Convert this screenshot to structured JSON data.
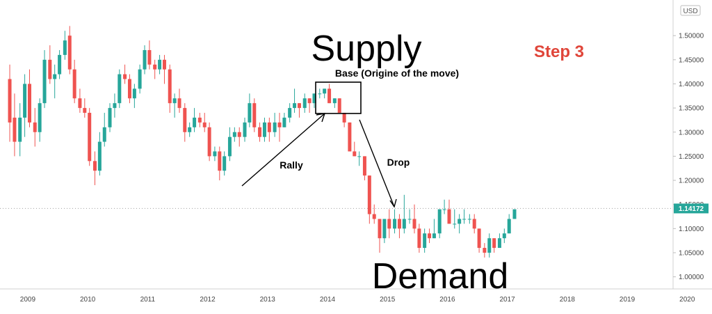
{
  "chart_data": {
    "type": "candlestick",
    "currency_label": "USD",
    "x_ticks": [
      "2009",
      "2010",
      "2011",
      "2012",
      "2013",
      "2014",
      "2015",
      "2016",
      "2017",
      "2018",
      "2019",
      "2020"
    ],
    "y_ticks": [
      "1.50000",
      "1.45000",
      "1.40000",
      "1.35000",
      "1.30000",
      "1.25000",
      "1.20000",
      "1.15000",
      "1.10000",
      "1.05000",
      "1.00000"
    ],
    "ylim": [
      0.985,
      1.545
    ],
    "xlim": [
      2008.93,
      2020.03
    ],
    "current_price": {
      "value": 1.14172,
      "label": "1.14172"
    },
    "colors": {
      "up": "#26a69a",
      "down": "#ef5350",
      "annotation_red": "#e0463a",
      "price_line": "#9e9e9e"
    },
    "candles": [
      [
        2009.0,
        1.41,
        1.44,
        1.28,
        1.32
      ],
      [
        2009.08,
        1.33,
        1.38,
        1.25,
        1.28
      ],
      [
        2009.17,
        1.28,
        1.36,
        1.25,
        1.33
      ],
      [
        2009.25,
        1.33,
        1.42,
        1.29,
        1.4
      ],
      [
        2009.33,
        1.4,
        1.43,
        1.31,
        1.32
      ],
      [
        2009.42,
        1.32,
        1.35,
        1.27,
        1.3
      ],
      [
        2009.5,
        1.3,
        1.37,
        1.28,
        1.36
      ],
      [
        2009.58,
        1.36,
        1.47,
        1.35,
        1.45
      ],
      [
        2009.67,
        1.45,
        1.48,
        1.4,
        1.41
      ],
      [
        2009.75,
        1.41,
        1.44,
        1.37,
        1.42
      ],
      [
        2009.83,
        1.42,
        1.47,
        1.41,
        1.46
      ],
      [
        2009.92,
        1.46,
        1.51,
        1.45,
        1.49
      ],
      [
        2010.0,
        1.5,
        1.52,
        1.42,
        1.43
      ],
      [
        2010.08,
        1.43,
        1.45,
        1.36,
        1.37
      ],
      [
        2010.17,
        1.37,
        1.39,
        1.34,
        1.35
      ],
      [
        2010.25,
        1.35,
        1.37,
        1.33,
        1.34
      ],
      [
        2010.33,
        1.34,
        1.35,
        1.23,
        1.24
      ],
      [
        2010.42,
        1.24,
        1.26,
        1.19,
        1.22
      ],
      [
        2010.5,
        1.22,
        1.3,
        1.21,
        1.28
      ],
      [
        2010.58,
        1.28,
        1.34,
        1.27,
        1.31
      ],
      [
        2010.67,
        1.31,
        1.36,
        1.3,
        1.35
      ],
      [
        2010.75,
        1.35,
        1.38,
        1.33,
        1.36
      ],
      [
        2010.83,
        1.36,
        1.43,
        1.35,
        1.42
      ],
      [
        2010.92,
        1.42,
        1.44,
        1.4,
        1.41
      ],
      [
        2011.0,
        1.41,
        1.42,
        1.36,
        1.37
      ],
      [
        2011.08,
        1.37,
        1.4,
        1.35,
        1.39
      ],
      [
        2011.17,
        1.39,
        1.44,
        1.38,
        1.43
      ],
      [
        2011.25,
        1.43,
        1.48,
        1.42,
        1.47
      ],
      [
        2011.33,
        1.47,
        1.49,
        1.43,
        1.44
      ],
      [
        2011.42,
        1.44,
        1.45,
        1.41,
        1.43
      ],
      [
        2011.5,
        1.43,
        1.46,
        1.42,
        1.45
      ],
      [
        2011.58,
        1.45,
        1.46,
        1.4,
        1.43
      ],
      [
        2011.67,
        1.43,
        1.44,
        1.34,
        1.36
      ],
      [
        2011.75,
        1.36,
        1.38,
        1.33,
        1.37
      ],
      [
        2011.83,
        1.37,
        1.39,
        1.34,
        1.35
      ],
      [
        2011.92,
        1.35,
        1.36,
        1.28,
        1.3
      ],
      [
        2012.0,
        1.3,
        1.32,
        1.29,
        1.31
      ],
      [
        2012.08,
        1.31,
        1.35,
        1.3,
        1.33
      ],
      [
        2012.17,
        1.33,
        1.34,
        1.31,
        1.32
      ],
      [
        2012.25,
        1.32,
        1.34,
        1.3,
        1.31
      ],
      [
        2012.33,
        1.31,
        1.32,
        1.24,
        1.25
      ],
      [
        2012.42,
        1.25,
        1.27,
        1.24,
        1.26
      ],
      [
        2012.5,
        1.26,
        1.27,
        1.2,
        1.22
      ],
      [
        2012.58,
        1.22,
        1.26,
        1.21,
        1.25
      ],
      [
        2012.67,
        1.25,
        1.31,
        1.24,
        1.29
      ],
      [
        2012.75,
        1.29,
        1.31,
        1.28,
        1.3
      ],
      [
        2012.83,
        1.3,
        1.31,
        1.27,
        1.29
      ],
      [
        2012.92,
        1.29,
        1.33,
        1.28,
        1.32
      ],
      [
        2013.0,
        1.32,
        1.38,
        1.31,
        1.36
      ],
      [
        2013.08,
        1.36,
        1.37,
        1.3,
        1.31
      ],
      [
        2013.17,
        1.31,
        1.32,
        1.28,
        1.29
      ],
      [
        2013.25,
        1.29,
        1.33,
        1.28,
        1.32
      ],
      [
        2013.33,
        1.32,
        1.33,
        1.28,
        1.3
      ],
      [
        2013.42,
        1.3,
        1.34,
        1.29,
        1.32
      ],
      [
        2013.5,
        1.32,
        1.34,
        1.28,
        1.31
      ],
      [
        2013.58,
        1.31,
        1.34,
        1.31,
        1.33
      ],
      [
        2013.67,
        1.33,
        1.36,
        1.32,
        1.35
      ],
      [
        2013.75,
        1.35,
        1.39,
        1.34,
        1.36
      ],
      [
        2013.83,
        1.36,
        1.36,
        1.33,
        1.35
      ],
      [
        2013.92,
        1.35,
        1.38,
        1.34,
        1.37
      ],
      [
        2014.0,
        1.37,
        1.37,
        1.34,
        1.36
      ],
      [
        2014.08,
        1.36,
        1.38,
        1.35,
        1.38
      ],
      [
        2014.17,
        1.38,
        1.39,
        1.37,
        1.38
      ],
      [
        2014.25,
        1.38,
        1.39,
        1.37,
        1.39
      ],
      [
        2014.33,
        1.39,
        1.4,
        1.36,
        1.36
      ],
      [
        2014.42,
        1.36,
        1.37,
        1.35,
        1.37
      ],
      [
        2014.5,
        1.37,
        1.37,
        1.34,
        1.34
      ],
      [
        2014.58,
        1.34,
        1.34,
        1.31,
        1.32
      ],
      [
        2014.67,
        1.32,
        1.32,
        1.26,
        1.26
      ],
      [
        2014.75,
        1.26,
        1.28,
        1.25,
        1.25
      ],
      [
        2014.83,
        1.25,
        1.26,
        1.23,
        1.25
      ],
      [
        2014.92,
        1.25,
        1.25,
        1.2,
        1.21
      ],
      [
        2015.0,
        1.21,
        1.21,
        1.11,
        1.13
      ],
      [
        2015.08,
        1.13,
        1.15,
        1.11,
        1.12
      ],
      [
        2015.17,
        1.12,
        1.12,
        1.05,
        1.08
      ],
      [
        2015.25,
        1.08,
        1.12,
        1.07,
        1.12
      ],
      [
        2015.33,
        1.12,
        1.14,
        1.08,
        1.1
      ],
      [
        2015.42,
        1.1,
        1.14,
        1.09,
        1.12
      ],
      [
        2015.5,
        1.12,
        1.13,
        1.08,
        1.1
      ],
      [
        2015.58,
        1.1,
        1.17,
        1.09,
        1.12
      ],
      [
        2015.67,
        1.12,
        1.14,
        1.11,
        1.12
      ],
      [
        2015.75,
        1.12,
        1.15,
        1.09,
        1.1
      ],
      [
        2015.83,
        1.1,
        1.11,
        1.05,
        1.06
      ],
      [
        2015.92,
        1.06,
        1.1,
        1.05,
        1.09
      ],
      [
        2016.0,
        1.09,
        1.1,
        1.07,
        1.08
      ],
      [
        2016.08,
        1.08,
        1.12,
        1.08,
        1.09
      ],
      [
        2016.17,
        1.09,
        1.14,
        1.08,
        1.14
      ],
      [
        2016.25,
        1.14,
        1.16,
        1.13,
        1.14
      ],
      [
        2016.33,
        1.14,
        1.16,
        1.11,
        1.11
      ],
      [
        2016.42,
        1.11,
        1.14,
        1.1,
        1.11
      ],
      [
        2016.5,
        1.11,
        1.13,
        1.09,
        1.12
      ],
      [
        2016.58,
        1.12,
        1.14,
        1.11,
        1.12
      ],
      [
        2016.67,
        1.12,
        1.13,
        1.11,
        1.12
      ],
      [
        2016.75,
        1.12,
        1.13,
        1.09,
        1.1
      ],
      [
        2016.83,
        1.1,
        1.1,
        1.05,
        1.06
      ],
      [
        2016.92,
        1.06,
        1.07,
        1.04,
        1.05
      ],
      [
        2017.0,
        1.05,
        1.09,
        1.04,
        1.08
      ],
      [
        2017.08,
        1.08,
        1.08,
        1.05,
        1.06
      ],
      [
        2017.17,
        1.06,
        1.09,
        1.06,
        1.08
      ],
      [
        2017.25,
        1.08,
        1.1,
        1.07,
        1.09
      ],
      [
        2017.33,
        1.09,
        1.13,
        1.09,
        1.12
      ],
      [
        2017.42,
        1.12,
        1.14,
        1.12,
        1.14
      ]
    ]
  },
  "annotations": {
    "supply": "Supply",
    "demand": "Demand",
    "step": "Step 3",
    "base": "Base (Origine of the move)",
    "rally": "Rally",
    "drop": "Drop"
  }
}
